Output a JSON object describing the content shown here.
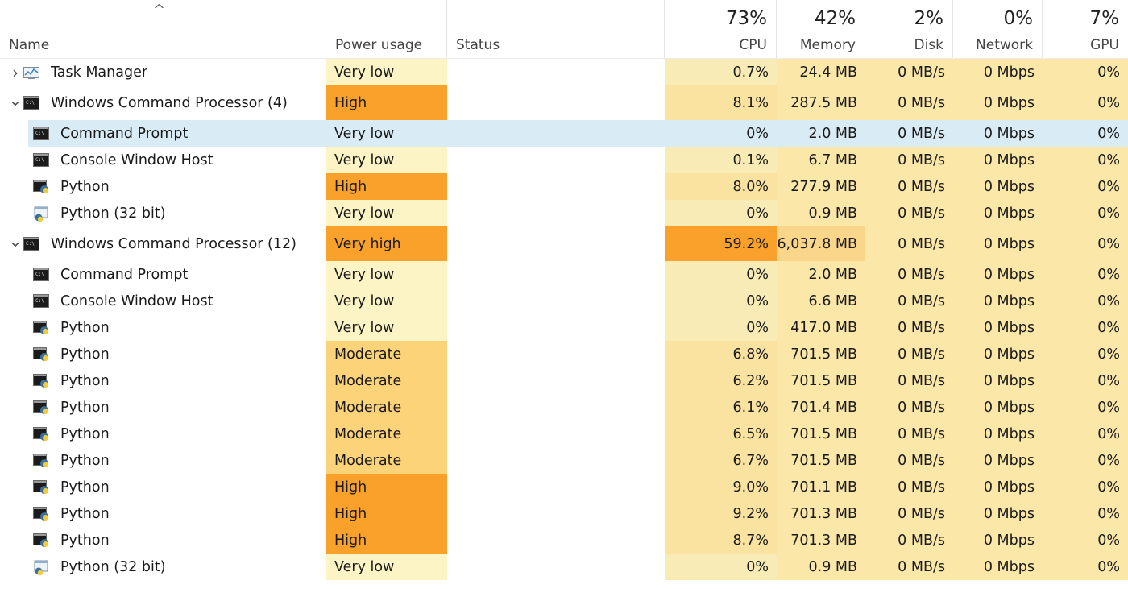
{
  "header": {
    "name": "Name",
    "power_usage": "Power usage",
    "status": "Status",
    "cpu": {
      "label": "CPU",
      "pct": "73%"
    },
    "memory": {
      "label": "Memory",
      "pct": "42%"
    },
    "disk": {
      "label": "Disk",
      "pct": "2%"
    },
    "network": {
      "label": "Network",
      "pct": "0%"
    },
    "gpu": {
      "label": "GPU",
      "pct": "7%"
    },
    "sort_indicator": "^"
  },
  "colors": {
    "very_low": "#fdf4c6",
    "moderate": "#fdd37a",
    "high": "#f9a12a",
    "very_high": "#f9a12a",
    "cpu_light": "#f9ebb5",
    "cpu_mid": "#fae3a0",
    "mem_light": "#fbe7a7",
    "mem_mid": "#fad68a",
    "selected": "#d9ebf5"
  },
  "rows": [
    {
      "name": "Task Manager",
      "icon": "task-manager-icon",
      "level": 0,
      "expander": "›",
      "power": "Very low",
      "power_level": "very_low",
      "cpu": "0.7%",
      "memory": "24.4 MB",
      "disk": "0 MB/s",
      "network": "0 Mbps",
      "gpu": "0%"
    },
    {
      "name": "Windows Command Processor (4)",
      "icon": "console-icon",
      "level": 0,
      "expander": "⌄",
      "power": "High",
      "power_level": "high",
      "cpu": "8.1%",
      "memory": "287.5 MB",
      "disk": "0 MB/s",
      "network": "0 Mbps",
      "gpu": "0%"
    },
    {
      "name": "Command Prompt",
      "icon": "console-icon",
      "level": 1,
      "expander": "",
      "power": "Very low",
      "power_level": "very_low",
      "cpu": "0%",
      "memory": "2.0 MB",
      "disk": "0 MB/s",
      "network": "0 Mbps",
      "gpu": "0%",
      "selected": true
    },
    {
      "name": "Console Window Host",
      "icon": "console-icon",
      "level": 1,
      "expander": "",
      "power": "Very low",
      "power_level": "very_low",
      "cpu": "0.1%",
      "memory": "6.7 MB",
      "disk": "0 MB/s",
      "network": "0 Mbps",
      "gpu": "0%"
    },
    {
      "name": "Python",
      "icon": "python-icon",
      "level": 1,
      "expander": "",
      "power": "High",
      "power_level": "high",
      "cpu": "8.0%",
      "memory": "277.9 MB",
      "disk": "0 MB/s",
      "network": "0 Mbps",
      "gpu": "0%"
    },
    {
      "name": "Python (32 bit)",
      "icon": "python-32-icon",
      "level": 1,
      "expander": "",
      "power": "Very low",
      "power_level": "very_low",
      "cpu": "0%",
      "memory": "0.9 MB",
      "disk": "0 MB/s",
      "network": "0 Mbps",
      "gpu": "0%"
    },
    {
      "name": "Windows Command Processor (12)",
      "icon": "console-icon",
      "level": 0,
      "expander": "⌄",
      "power": "Very high",
      "power_level": "very_high",
      "cpu": "59.2%",
      "memory": "6,037.8 MB",
      "disk": "0 MB/s",
      "network": "0 Mbps",
      "gpu": "0%",
      "cpu_hot": true,
      "mem_hot": true
    },
    {
      "name": "Command Prompt",
      "icon": "console-icon",
      "level": 1,
      "expander": "",
      "power": "Very low",
      "power_level": "very_low",
      "cpu": "0%",
      "memory": "2.0 MB",
      "disk": "0 MB/s",
      "network": "0 Mbps",
      "gpu": "0%"
    },
    {
      "name": "Console Window Host",
      "icon": "console-icon",
      "level": 1,
      "expander": "",
      "power": "Very low",
      "power_level": "very_low",
      "cpu": "0%",
      "memory": "6.6 MB",
      "disk": "0 MB/s",
      "network": "0 Mbps",
      "gpu": "0%"
    },
    {
      "name": "Python",
      "icon": "python-icon",
      "level": 1,
      "expander": "",
      "power": "Very low",
      "power_level": "very_low",
      "cpu": "0%",
      "memory": "417.0 MB",
      "disk": "0 MB/s",
      "network": "0 Mbps",
      "gpu": "0%"
    },
    {
      "name": "Python",
      "icon": "python-icon",
      "level": 1,
      "expander": "",
      "power": "Moderate",
      "power_level": "moderate",
      "cpu": "6.8%",
      "memory": "701.5 MB",
      "disk": "0 MB/s",
      "network": "0 Mbps",
      "gpu": "0%"
    },
    {
      "name": "Python",
      "icon": "python-icon",
      "level": 1,
      "expander": "",
      "power": "Moderate",
      "power_level": "moderate",
      "cpu": "6.2%",
      "memory": "701.5 MB",
      "disk": "0 MB/s",
      "network": "0 Mbps",
      "gpu": "0%"
    },
    {
      "name": "Python",
      "icon": "python-icon",
      "level": 1,
      "expander": "",
      "power": "Moderate",
      "power_level": "moderate",
      "cpu": "6.1%",
      "memory": "701.4 MB",
      "disk": "0 MB/s",
      "network": "0 Mbps",
      "gpu": "0%"
    },
    {
      "name": "Python",
      "icon": "python-icon",
      "level": 1,
      "expander": "",
      "power": "Moderate",
      "power_level": "moderate",
      "cpu": "6.5%",
      "memory": "701.5 MB",
      "disk": "0 MB/s",
      "network": "0 Mbps",
      "gpu": "0%"
    },
    {
      "name": "Python",
      "icon": "python-icon",
      "level": 1,
      "expander": "",
      "power": "Moderate",
      "power_level": "moderate",
      "cpu": "6.7%",
      "memory": "701.5 MB",
      "disk": "0 MB/s",
      "network": "0 Mbps",
      "gpu": "0%"
    },
    {
      "name": "Python",
      "icon": "python-icon",
      "level": 1,
      "expander": "",
      "power": "High",
      "power_level": "high",
      "cpu": "9.0%",
      "memory": "701.1 MB",
      "disk": "0 MB/s",
      "network": "0 Mbps",
      "gpu": "0%"
    },
    {
      "name": "Python",
      "icon": "python-icon",
      "level": 1,
      "expander": "",
      "power": "High",
      "power_level": "high",
      "cpu": "9.2%",
      "memory": "701.3 MB",
      "disk": "0 MB/s",
      "network": "0 Mbps",
      "gpu": "0%"
    },
    {
      "name": "Python",
      "icon": "python-icon",
      "level": 1,
      "expander": "",
      "power": "High",
      "power_level": "high",
      "cpu": "8.7%",
      "memory": "701.3 MB",
      "disk": "0 MB/s",
      "network": "0 Mbps",
      "gpu": "0%"
    },
    {
      "name": "Python (32 bit)",
      "icon": "python-32-icon",
      "level": 1,
      "expander": "",
      "power": "Very low",
      "power_level": "very_low",
      "cpu": "0%",
      "memory": "0.9 MB",
      "disk": "0 MB/s",
      "network": "0 Mbps",
      "gpu": "0%"
    }
  ]
}
